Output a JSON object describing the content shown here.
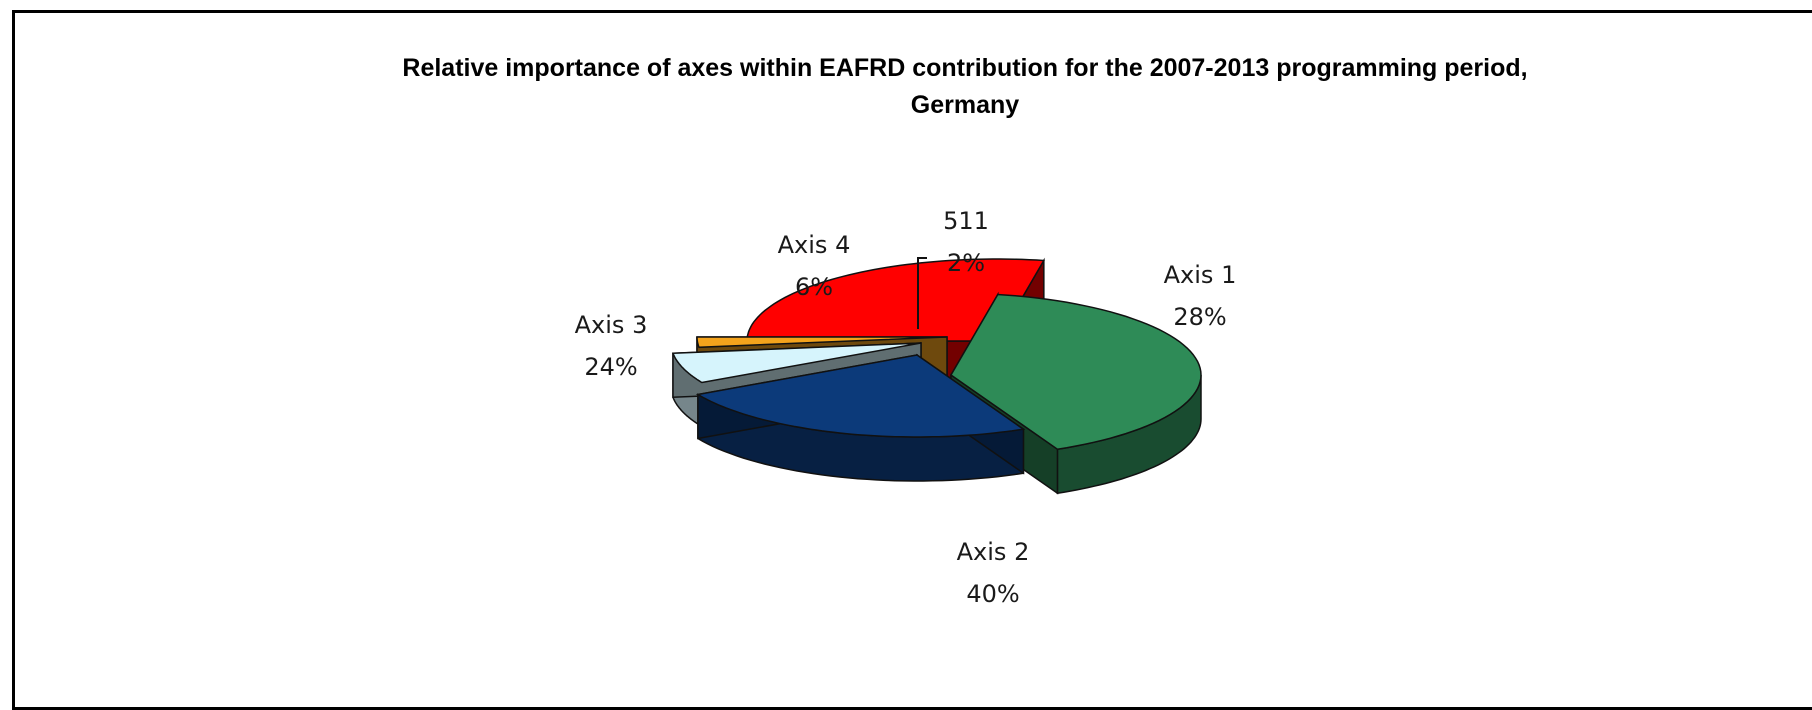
{
  "chart_data": {
    "type": "pie",
    "title": "Relative importance of axes within EAFRD contribution for the 2007-2013 programming period, Germany",
    "title_lines": [
      "Relative importance of axes within EAFRD contribution for the 2007-2013 programming period,",
      "Germany"
    ],
    "three_d": true,
    "exploded": true,
    "legend": "none",
    "slices": [
      {
        "label": "Axis 1",
        "value": 28,
        "display": "28%",
        "color": "#ff0000"
      },
      {
        "label": "Axis 2",
        "value": 40,
        "display": "40%",
        "color": "#2e8b57"
      },
      {
        "label": "Axis 3",
        "value": 24,
        "display": "24%",
        "color": "#0c3a7a"
      },
      {
        "label": "Axis 4",
        "value": 6,
        "display": "6%",
        "color": "#d6f4fc"
      },
      {
        "label": "511",
        "value": 2,
        "display": "2%",
        "color": "#f4a31c"
      }
    ]
  }
}
